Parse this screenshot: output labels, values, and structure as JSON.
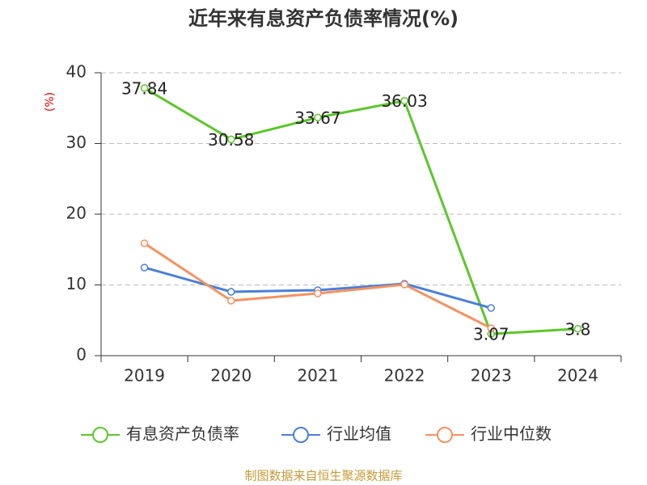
{
  "chart_data": {
    "type": "line",
    "title": "近年来有息资产负债率情况(%)",
    "y_label": "(%)",
    "categories": [
      "2019",
      "2020",
      "2021",
      "2022",
      "2023",
      "2024"
    ],
    "series": [
      {
        "name": "有息资产负债率",
        "color": "#5cc72a",
        "values": [
          37.84,
          30.58,
          33.67,
          36.03,
          3.07,
          3.8
        ],
        "labels": true
      },
      {
        "name": "行业均值",
        "color": "#4a7fdb",
        "values": [
          12.46,
          9.03,
          9.26,
          10.17,
          6.74,
          null
        ]
      },
      {
        "name": "行业中位数",
        "color": "#f5925e",
        "values": [
          15.89,
          7.77,
          8.8,
          10.06,
          3.89,
          null
        ]
      }
    ],
    "ylim": [
      0,
      40
    ],
    "yticks": [
      0,
      10,
      20,
      30,
      40
    ],
    "grid": true,
    "source": "制图数据来自恒生聚源数据库"
  }
}
